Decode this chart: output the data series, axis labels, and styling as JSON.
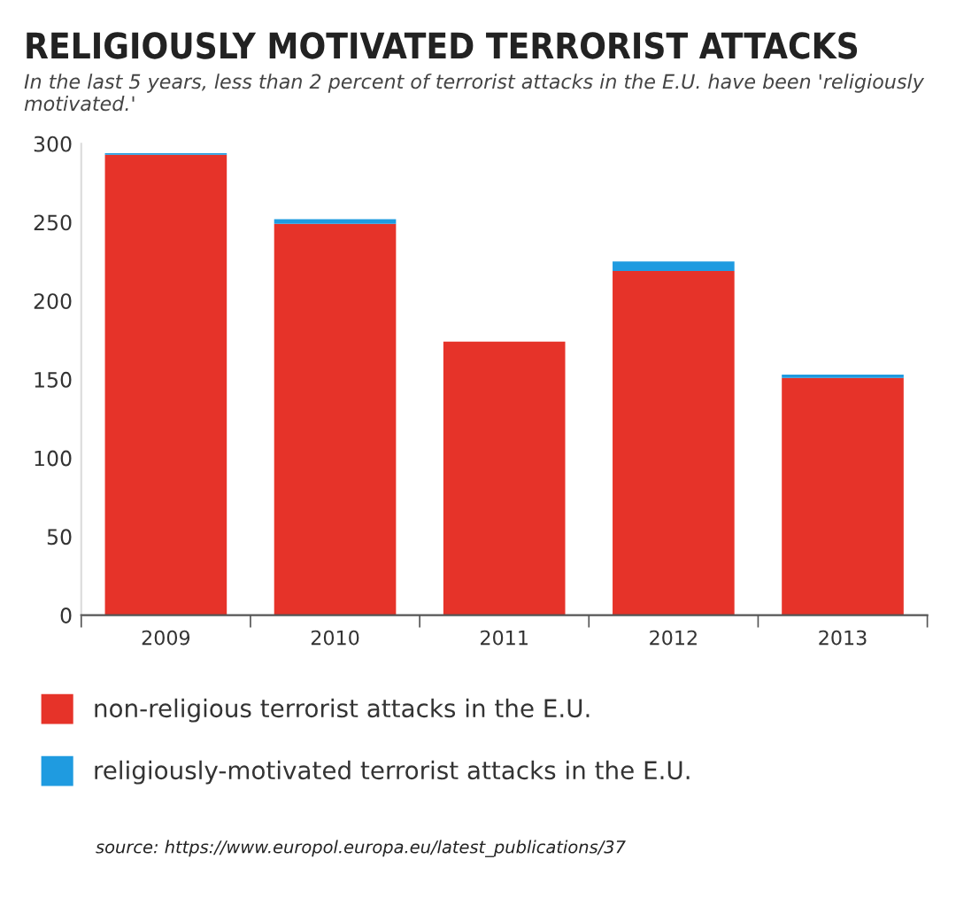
{
  "chart_data": {
    "type": "bar",
    "title": "RELIGIOUSLY MOTIVATED TERRORIST ATTACKS",
    "subtitle": "In the last 5 years, less than 2 percent of terrorist attacks in the E.U. have been 'religiously motivated.'",
    "categories": [
      "2009",
      "2010",
      "2011",
      "2012",
      "2013"
    ],
    "series": [
      {
        "name": "non-religious terrorist attacks in the E.U.",
        "color": "#e63329",
        "values": [
          293,
          249,
          174,
          219,
          151
        ]
      },
      {
        "name": "religiously-motivated terrorist attacks in the E.U.",
        "color": "#1f9be0",
        "values": [
          1,
          3,
          0,
          6,
          2
        ]
      }
    ],
    "stacked": true,
    "ylim": [
      0,
      300
    ],
    "yticks": [
      0,
      50,
      100,
      150,
      200,
      250,
      300
    ],
    "grid": false,
    "legend": "bottom",
    "annotations": [
      "source: https://www.europol.europa.eu/latest_publications/37"
    ]
  }
}
